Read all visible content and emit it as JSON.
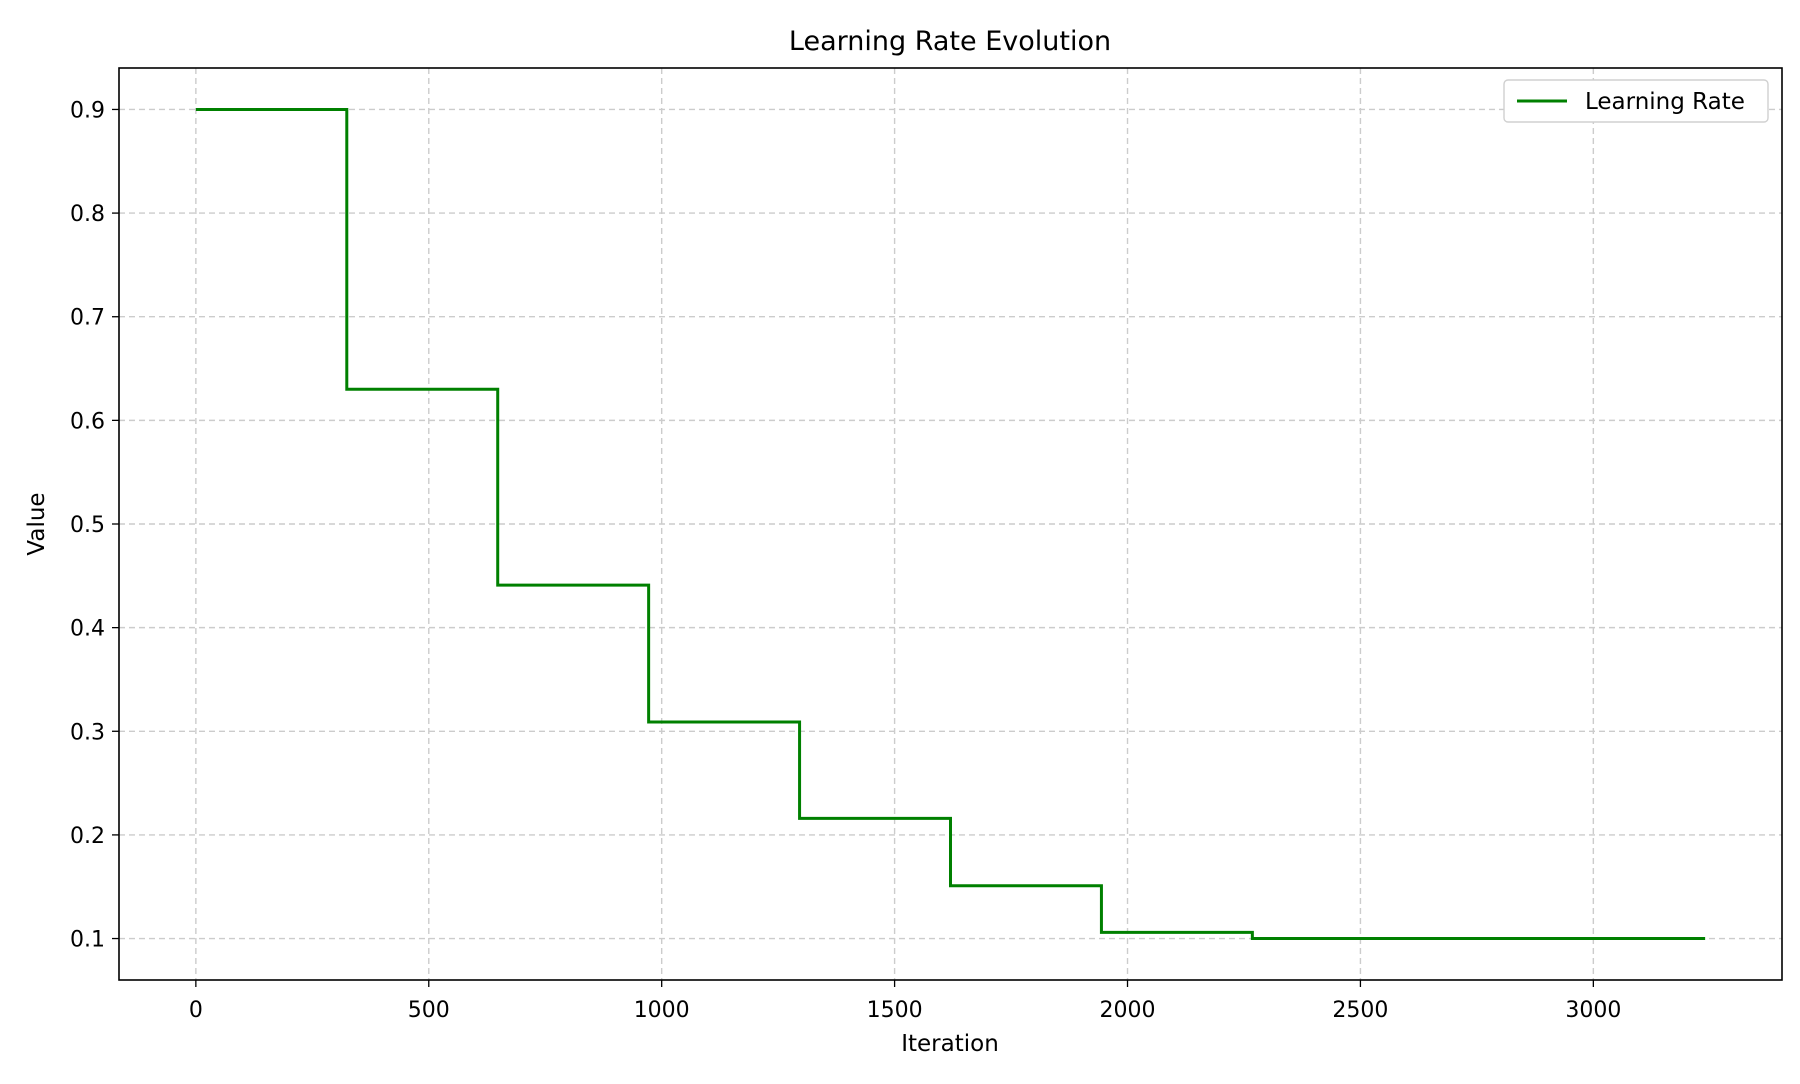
{
  "chart_data": {
    "type": "line",
    "title": "Learning Rate Evolution",
    "xlabel": "Iteration",
    "ylabel": "Value",
    "xlim": [
      -165,
      3405
    ],
    "ylim": [
      0.06,
      0.94
    ],
    "xticks": [
      0,
      500,
      1000,
      1500,
      2000,
      2500,
      3000
    ],
    "yticks": [
      0.1,
      0.2,
      0.3,
      0.4,
      0.5,
      0.6,
      0.7,
      0.8,
      0.9
    ],
    "xtick_labels": [
      "0",
      "500",
      "1000",
      "1500",
      "2000",
      "2500",
      "3000"
    ],
    "ytick_labels": [
      "0.1",
      "0.2",
      "0.3",
      "0.4",
      "0.5",
      "0.6",
      "0.7",
      "0.8",
      "0.9"
    ],
    "grid": true,
    "legend_position": "top-right",
    "series": [
      {
        "name": "Learning Rate",
        "color": "#008000",
        "step": "post",
        "x": [
          0,
          324,
          648,
          972,
          1296,
          1620,
          1944,
          2268,
          3240
        ],
        "y": [
          0.9,
          0.63,
          0.441,
          0.309,
          0.216,
          0.151,
          0.106,
          0.1,
          0.1
        ]
      }
    ]
  }
}
